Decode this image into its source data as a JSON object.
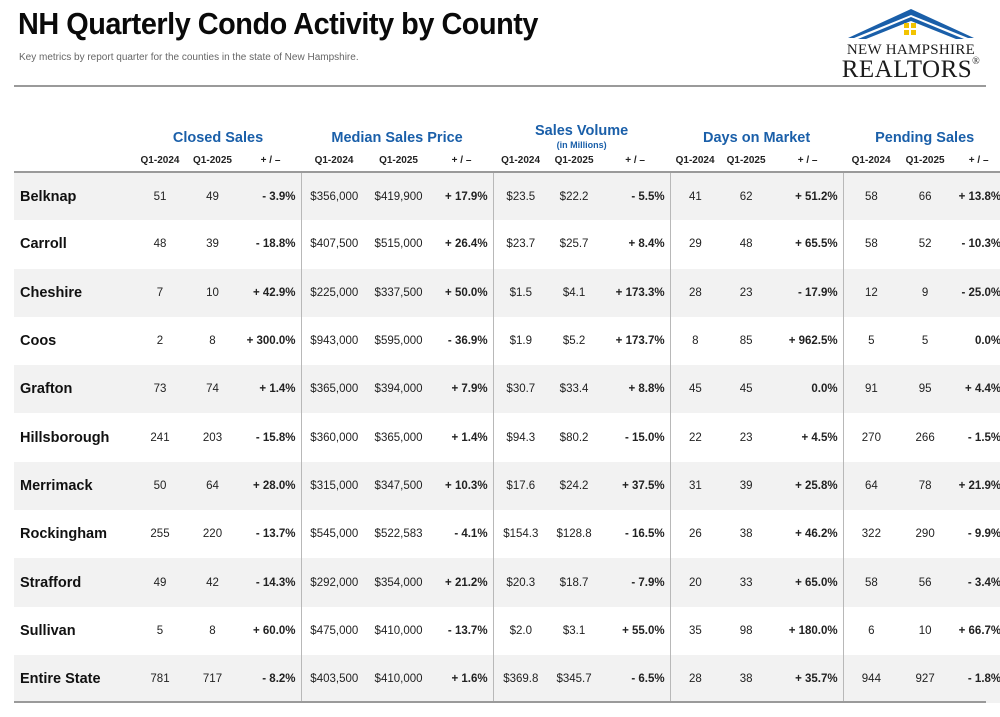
{
  "header": {
    "title": "NH Quarterly Condo Activity by County",
    "subtitle": "Key metrics by report quarter for the counties in the state of New Hampshire."
  },
  "logo": {
    "line1": "New Hampshire",
    "line2": "REALTORS",
    "registered": "®",
    "roof_color": "#1a5fa9",
    "window_color": "#f2c300"
  },
  "colors": {
    "heading_blue": "#1a5fa9",
    "row_stripe": "#f2f2f2"
  },
  "table": {
    "groups": [
      {
        "label": "Closed Sales",
        "note": ""
      },
      {
        "label": "Median Sales Price",
        "note": ""
      },
      {
        "label": "Sales Volume",
        "note": "(in Millions)"
      },
      {
        "label": "Days on Market",
        "note": ""
      },
      {
        "label": "Pending Sales",
        "note": ""
      }
    ],
    "sub_headers": [
      "Q1-2024",
      "Q1-2025",
      "+ / –"
    ],
    "rows": [
      {
        "county": "Belknap",
        "values": [
          "51",
          "49",
          "- 3.9%",
          "$356,000",
          "$419,900",
          "+ 17.9%",
          "$23.5",
          "$22.2",
          "- 5.5%",
          "41",
          "62",
          "+ 51.2%",
          "58",
          "66",
          "+ 13.8%"
        ]
      },
      {
        "county": "Carroll",
        "values": [
          "48",
          "39",
          "- 18.8%",
          "$407,500",
          "$515,000",
          "+ 26.4%",
          "$23.7",
          "$25.7",
          "+ 8.4%",
          "29",
          "48",
          "+ 65.5%",
          "58",
          "52",
          "- 10.3%"
        ]
      },
      {
        "county": "Cheshire",
        "values": [
          "7",
          "10",
          "+ 42.9%",
          "$225,000",
          "$337,500",
          "+ 50.0%",
          "$1.5",
          "$4.1",
          "+ 173.3%",
          "28",
          "23",
          "- 17.9%",
          "12",
          "9",
          "- 25.0%"
        ]
      },
      {
        "county": "Coos",
        "values": [
          "2",
          "8",
          "+ 300.0%",
          "$943,000",
          "$595,000",
          "- 36.9%",
          "$1.9",
          "$5.2",
          "+ 173.7%",
          "8",
          "85",
          "+ 962.5%",
          "5",
          "5",
          "0.0%"
        ]
      },
      {
        "county": "Grafton",
        "values": [
          "73",
          "74",
          "+ 1.4%",
          "$365,000",
          "$394,000",
          "+ 7.9%",
          "$30.7",
          "$33.4",
          "+ 8.8%",
          "45",
          "45",
          "0.0%",
          "91",
          "95",
          "+ 4.4%"
        ]
      },
      {
        "county": "Hillsborough",
        "values": [
          "241",
          "203",
          "- 15.8%",
          "$360,000",
          "$365,000",
          "+ 1.4%",
          "$94.3",
          "$80.2",
          "- 15.0%",
          "22",
          "23",
          "+ 4.5%",
          "270",
          "266",
          "- 1.5%"
        ]
      },
      {
        "county": "Merrimack",
        "values": [
          "50",
          "64",
          "+ 28.0%",
          "$315,000",
          "$347,500",
          "+ 10.3%",
          "$17.6",
          "$24.2",
          "+ 37.5%",
          "31",
          "39",
          "+ 25.8%",
          "64",
          "78",
          "+ 21.9%"
        ]
      },
      {
        "county": "Rockingham",
        "values": [
          "255",
          "220",
          "- 13.7%",
          "$545,000",
          "$522,583",
          "- 4.1%",
          "$154.3",
          "$128.8",
          "- 16.5%",
          "26",
          "38",
          "+ 46.2%",
          "322",
          "290",
          "- 9.9%"
        ]
      },
      {
        "county": "Strafford",
        "values": [
          "49",
          "42",
          "- 14.3%",
          "$292,000",
          "$354,000",
          "+ 21.2%",
          "$20.3",
          "$18.7",
          "- 7.9%",
          "20",
          "33",
          "+ 65.0%",
          "58",
          "56",
          "- 3.4%"
        ]
      },
      {
        "county": "Sullivan",
        "values": [
          "5",
          "8",
          "+ 60.0%",
          "$475,000",
          "$410,000",
          "- 13.7%",
          "$2.0",
          "$3.1",
          "+ 55.0%",
          "35",
          "98",
          "+ 180.0%",
          "6",
          "10",
          "+ 66.7%"
        ]
      },
      {
        "county": "Entire State",
        "values": [
          "781",
          "717",
          "- 8.2%",
          "$403,500",
          "$410,000",
          "+ 1.6%",
          "$369.8",
          "$345.7",
          "- 6.5%",
          "28",
          "38",
          "+ 35.7%",
          "944",
          "927",
          "- 1.8%"
        ]
      }
    ]
  }
}
